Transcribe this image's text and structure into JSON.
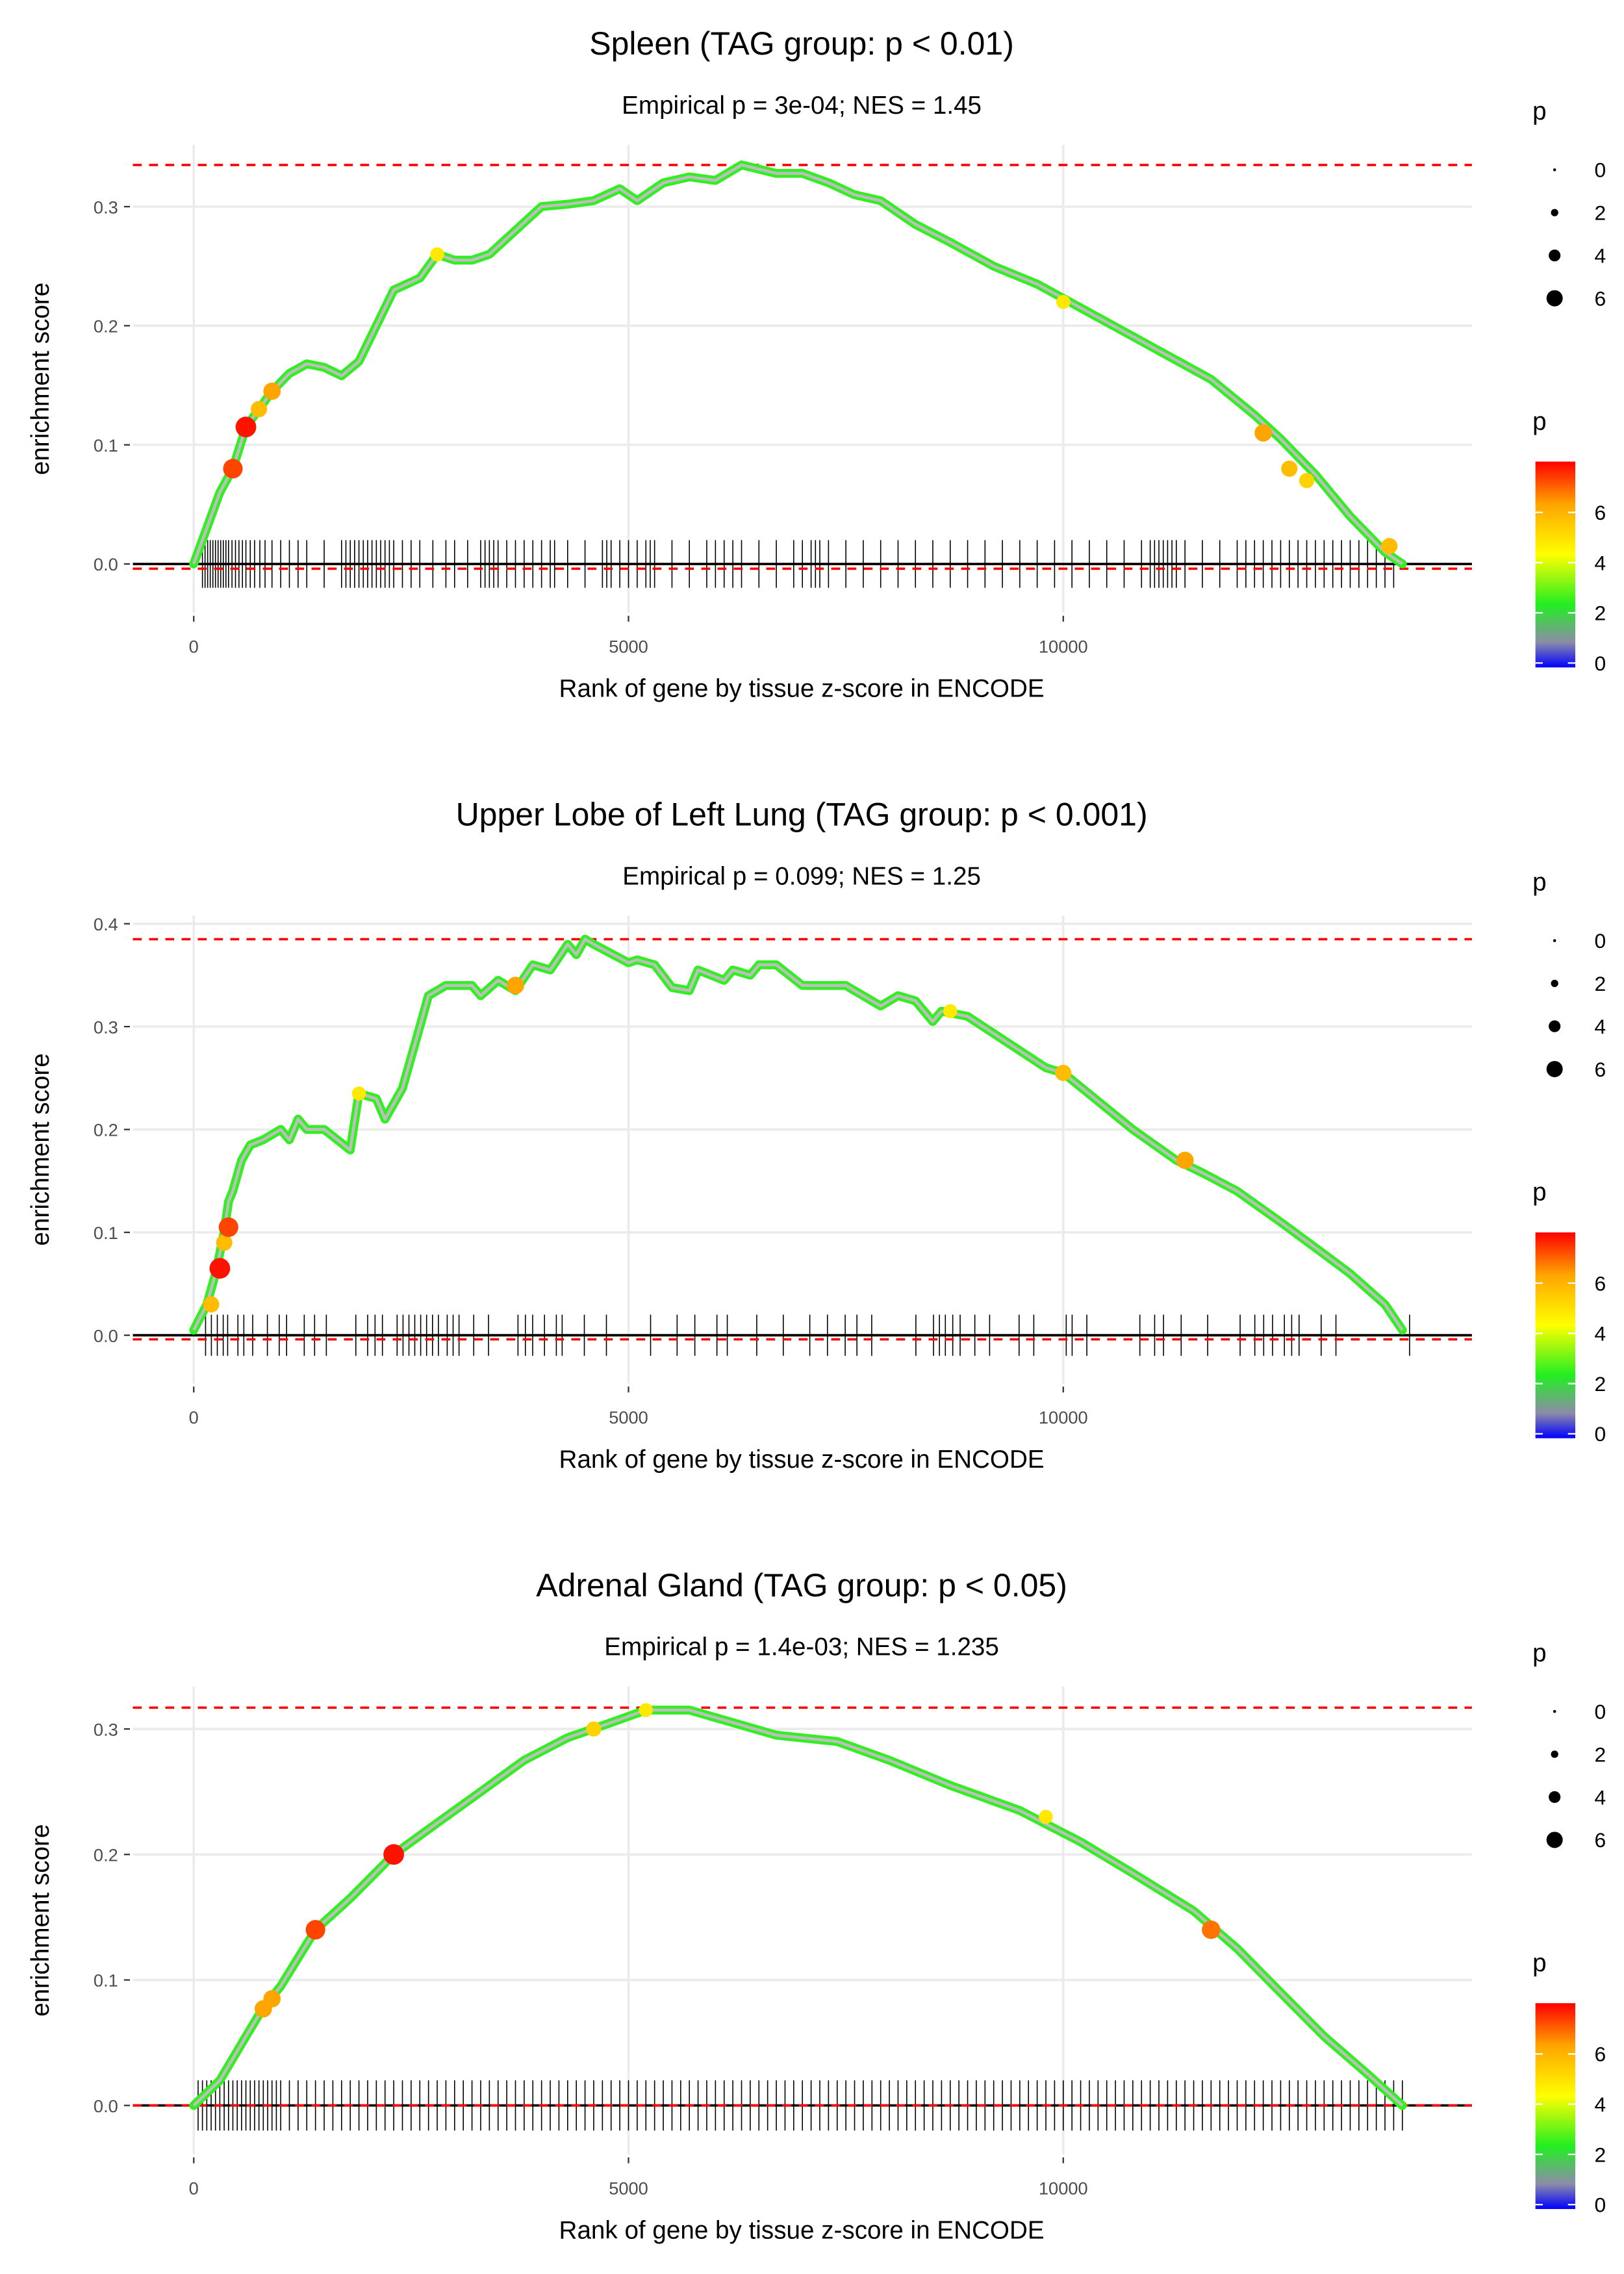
{
  "colors": {
    "dashed": "#ff0000",
    "line": "#bebebe",
    "grid": "#ebebeb",
    "rug": "#000000"
  },
  "colorscale": [
    [
      0,
      "#0000ff"
    ],
    [
      1,
      "#8c8ca8"
    ],
    [
      2.5,
      "#22ee22"
    ],
    [
      4.5,
      "#ffff00"
    ],
    [
      6.5,
      "#ffa500"
    ],
    [
      8.2,
      "#ff0000"
    ]
  ],
  "chart_data": [
    {
      "type": "line",
      "title": "Spleen (TAG group: p < 0.01)",
      "subtitle": "Empirical p = 3e-04; NES = 1.45",
      "xlabel": "Rank of gene by tissue z-score in ENCODE",
      "ylabel": "enrichment score",
      "xticks": [
        0,
        5000,
        10000
      ],
      "xtick_labels": [
        "0",
        "5000",
        "10000"
      ],
      "yticks": [
        0,
        0.1,
        0.2,
        0.3
      ],
      "ytick_labels": [
        "0.0",
        "0.1",
        "0.2",
        "0.3"
      ],
      "xlim": [
        -700,
        14700
      ],
      "ylim": [
        -0.041,
        0.352
      ],
      "max_es": 0.335,
      "min_es": -0.004,
      "legend": {
        "size_title": "p",
        "size_labels": [
          "0",
          "2",
          "4",
          "6"
        ],
        "color_title": "p",
        "color_labels": [
          "0",
          "2",
          "4",
          "6"
        ]
      },
      "curve": [
        [
          0,
          0
        ],
        [
          100,
          0.02
        ],
        [
          300,
          0.06
        ],
        [
          450,
          0.08
        ],
        [
          600,
          0.115
        ],
        [
          750,
          0.13
        ],
        [
          900,
          0.145
        ],
        [
          1100,
          0.16
        ],
        [
          1300,
          0.168
        ],
        [
          1500,
          0.165
        ],
        [
          1700,
          0.158
        ],
        [
          1900,
          0.17
        ],
        [
          2100,
          0.2
        ],
        [
          2300,
          0.23
        ],
        [
          2600,
          0.24
        ],
        [
          2800,
          0.26
        ],
        [
          3000,
          0.255
        ],
        [
          3200,
          0.255
        ],
        [
          3400,
          0.26
        ],
        [
          3700,
          0.28
        ],
        [
          4000,
          0.3
        ],
        [
          4300,
          0.302
        ],
        [
          4600,
          0.305
        ],
        [
          4900,
          0.315
        ],
        [
          5100,
          0.305
        ],
        [
          5400,
          0.32
        ],
        [
          5700,
          0.325
        ],
        [
          6000,
          0.322
        ],
        [
          6300,
          0.335
        ],
        [
          6700,
          0.328
        ],
        [
          7000,
          0.328
        ],
        [
          7300,
          0.32
        ],
        [
          7600,
          0.31
        ],
        [
          7900,
          0.305
        ],
        [
          8300,
          0.285
        ],
        [
          8700,
          0.27
        ],
        [
          9200,
          0.25
        ],
        [
          9700,
          0.235
        ],
        [
          10200,
          0.215
        ],
        [
          10700,
          0.195
        ],
        [
          11200,
          0.175
        ],
        [
          11700,
          0.155
        ],
        [
          12200,
          0.125
        ],
        [
          12500,
          0.105
        ],
        [
          12900,
          0.075
        ],
        [
          13300,
          0.04
        ],
        [
          13700,
          0.01
        ],
        [
          13900,
          0
        ]
      ],
      "highlights": [
        [
          450,
          0.08,
          7.5
        ],
        [
          600,
          0.115,
          8
        ],
        [
          750,
          0.13,
          6
        ],
        [
          900,
          0.145,
          6.5
        ],
        [
          2800,
          0.26,
          5
        ],
        [
          10000,
          0.22,
          5
        ],
        [
          12300,
          0.11,
          6.5
        ],
        [
          12600,
          0.08,
          6
        ],
        [
          12800,
          0.07,
          5.5
        ],
        [
          13750,
          0.015,
          6
        ]
      ],
      "rug": [
        100,
        130,
        160,
        190,
        220,
        250,
        280,
        310,
        340,
        370,
        400,
        440,
        480,
        520,
        560,
        600,
        650,
        700,
        760,
        820,
        900,
        1000,
        1100,
        1200,
        1300,
        1500,
        1700,
        1750,
        1800,
        1850,
        1900,
        1950,
        2000,
        2050,
        2100,
        2150,
        2200,
        2250,
        2300,
        2400,
        2500,
        2600,
        2750,
        2900,
        3000,
        3150,
        3300,
        3350,
        3400,
        3450,
        3500,
        3600,
        3700,
        3800,
        3900,
        4000,
        4100,
        4150,
        4300,
        4500,
        4700,
        4750,
        4800,
        4900,
        5000,
        5100,
        5200,
        5250,
        5300,
        5500,
        5700,
        5900,
        6000,
        6100,
        6200,
        6300,
        6500,
        6700,
        6900,
        7000,
        7100,
        7150,
        7200,
        7300,
        7500,
        7700,
        7900,
        8100,
        8300,
        8500,
        8700,
        8900,
        9100,
        9300,
        9500,
        9700,
        9900,
        10100,
        10300,
        10500,
        10700,
        10900,
        11000,
        11050,
        11100,
        11150,
        11200,
        11250,
        11300,
        11400,
        11600,
        11800,
        12000,
        12100,
        12200,
        12300,
        12400,
        12500,
        12600,
        12700,
        12800,
        12900,
        13000,
        13100,
        13200,
        13300,
        13400,
        13500,
        13600,
        13700,
        13800
      ]
    },
    {
      "type": "line",
      "title": "Upper Lobe of Left Lung (TAG group: p < 0.001)",
      "subtitle": "Empirical p = 0.099; NES = 1.25",
      "xlabel": "Rank of gene by tissue z-score in ENCODE",
      "ylabel": "enrichment score",
      "xticks": [
        0,
        5000,
        10000
      ],
      "xtick_labels": [
        "0",
        "5000",
        "10000"
      ],
      "yticks": [
        0,
        0.1,
        0.2,
        0.3,
        0.4
      ],
      "ytick_labels": [
        "0.0",
        "0.1",
        "0.2",
        "0.3",
        "0.4"
      ],
      "xlim": [
        -700,
        14700
      ],
      "ylim": [
        -0.047,
        0.408
      ],
      "max_es": 0.385,
      "min_es": -0.004,
      "legend": {
        "size_title": "p",
        "size_labels": [
          "0",
          "2",
          "4",
          "6"
        ],
        "color_title": "p",
        "color_labels": [
          "0",
          "2",
          "4",
          "6"
        ]
      },
      "curve": [
        [
          0,
          0.005
        ],
        [
          150,
          0.03
        ],
        [
          250,
          0.06
        ],
        [
          350,
          0.1
        ],
        [
          400,
          0.13
        ],
        [
          450,
          0.14
        ],
        [
          550,
          0.17
        ],
        [
          650,
          0.185
        ],
        [
          800,
          0.19
        ],
        [
          1000,
          0.2
        ],
        [
          1100,
          0.19
        ],
        [
          1200,
          0.21
        ],
        [
          1300,
          0.2
        ],
        [
          1500,
          0.2
        ],
        [
          1800,
          0.18
        ],
        [
          1900,
          0.235
        ],
        [
          2100,
          0.23
        ],
        [
          2200,
          0.21
        ],
        [
          2400,
          0.24
        ],
        [
          2500,
          0.27
        ],
        [
          2600,
          0.3
        ],
        [
          2700,
          0.33
        ],
        [
          2900,
          0.34
        ],
        [
          3200,
          0.34
        ],
        [
          3300,
          0.33
        ],
        [
          3500,
          0.345
        ],
        [
          3700,
          0.335
        ],
        [
          3900,
          0.36
        ],
        [
          4100,
          0.355
        ],
        [
          4300,
          0.38
        ],
        [
          4400,
          0.37
        ],
        [
          4500,
          0.385
        ],
        [
          4600,
          0.38
        ],
        [
          5000,
          0.362
        ],
        [
          5100,
          0.365
        ],
        [
          5300,
          0.36
        ],
        [
          5500,
          0.338
        ],
        [
          5700,
          0.335
        ],
        [
          5800,
          0.355
        ],
        [
          6100,
          0.345
        ],
        [
          6200,
          0.355
        ],
        [
          6400,
          0.35
        ],
        [
          6500,
          0.36
        ],
        [
          6700,
          0.36
        ],
        [
          7000,
          0.34
        ],
        [
          7300,
          0.34
        ],
        [
          7500,
          0.34
        ],
        [
          7900,
          0.32
        ],
        [
          8100,
          0.33
        ],
        [
          8300,
          0.325
        ],
        [
          8500,
          0.305
        ],
        [
          8600,
          0.315
        ],
        [
          8900,
          0.31
        ],
        [
          9800,
          0.26
        ],
        [
          10000,
          0.255
        ],
        [
          10800,
          0.2
        ],
        [
          11300,
          0.17
        ],
        [
          11600,
          0.158
        ],
        [
          12000,
          0.14
        ],
        [
          12500,
          0.11
        ],
        [
          12900,
          0.085
        ],
        [
          13300,
          0.06
        ],
        [
          13700,
          0.03
        ],
        [
          13900,
          0.005
        ]
      ],
      "highlights": [
        [
          200,
          0.03,
          6
        ],
        [
          300,
          0.065,
          8
        ],
        [
          350,
          0.09,
          6
        ],
        [
          400,
          0.105,
          7.5
        ],
        [
          3700,
          0.34,
          6.5
        ],
        [
          1900,
          0.235,
          5
        ],
        [
          8700,
          0.315,
          5
        ],
        [
          10000,
          0.255,
          6
        ],
        [
          11400,
          0.17,
          6.5
        ]
      ],
      "rug": [
        136,
        203,
        271,
        339,
        390,
        508,
        576,
        678,
        847,
        983,
        1068,
        1271,
        1390,
        1525,
        1864,
        2000,
        2085,
        2170,
        2339,
        2407,
        2475,
        2542,
        2610,
        2678,
        2746,
        2814,
        2915,
        2983,
        3051,
        3220,
        3390,
        3729,
        3814,
        3898,
        4034,
        4170,
        4237,
        4492,
        4746,
        5254,
        5559,
        5763,
        6017,
        6136,
        6475,
        6780,
        7085,
        7288,
        7492,
        7627,
        7797,
        8305,
        8508,
        8576,
        8644,
        8729,
        8814,
        8983,
        9153,
        9492,
        9661,
        10034,
        10102,
        10271,
        10881,
        11051,
        11153,
        11356,
        11661,
        12034,
        12203,
        12305,
        12407,
        12543,
        12627,
        12712,
        12966,
        13136,
        13983
      ]
    },
    {
      "type": "line",
      "title": "Adrenal Gland (TAG group: p < 0.05)",
      "subtitle": "Empirical p = 1.4e-03; NES = 1.235",
      "xlabel": "Rank of gene by tissue z-score in ENCODE",
      "ylabel": "enrichment score",
      "xticks": [
        0,
        5000,
        10000
      ],
      "xtick_labels": [
        "0",
        "5000",
        "10000"
      ],
      "yticks": [
        0,
        0.1,
        0.2,
        0.3
      ],
      "ytick_labels": [
        "0.0",
        "0.1",
        "0.2",
        "0.3"
      ],
      "xlim": [
        -700,
        14700
      ],
      "ylim": [
        -0.039,
        0.334
      ],
      "max_es": 0.317,
      "min_es": 0,
      "legend": {
        "size_title": "p",
        "size_labels": [
          "0",
          "2",
          "4",
          "6"
        ],
        "color_title": "p",
        "color_labels": [
          "0",
          "2",
          "4",
          "6"
        ]
      },
      "curve": [
        [
          0,
          0
        ],
        [
          300,
          0.02
        ],
        [
          600,
          0.055
        ],
        [
          800,
          0.078
        ],
        [
          1000,
          0.095
        ],
        [
          1400,
          0.14
        ],
        [
          1800,
          0.165
        ],
        [
          2300,
          0.2
        ],
        [
          2800,
          0.225
        ],
        [
          3300,
          0.25
        ],
        [
          3800,
          0.275
        ],
        [
          4300,
          0.293
        ],
        [
          4800,
          0.305
        ],
        [
          5200,
          0.315
        ],
        [
          5700,
          0.315
        ],
        [
          6200,
          0.305
        ],
        [
          6700,
          0.295
        ],
        [
          7400,
          0.29
        ],
        [
          8000,
          0.275
        ],
        [
          8700,
          0.255
        ],
        [
          9500,
          0.235
        ],
        [
          10200,
          0.21
        ],
        [
          10800,
          0.185
        ],
        [
          11500,
          0.155
        ],
        [
          12000,
          0.125
        ],
        [
          12500,
          0.09
        ],
        [
          13000,
          0.055
        ],
        [
          13500,
          0.025
        ],
        [
          13900,
          0
        ]
      ],
      "highlights": [
        [
          800,
          0.077,
          6.5
        ],
        [
          900,
          0.085,
          6.5
        ],
        [
          1400,
          0.14,
          7.5
        ],
        [
          2300,
          0.2,
          8
        ],
        [
          4600,
          0.3,
          5.5
        ],
        [
          5200,
          0.315,
          5
        ],
        [
          9800,
          0.23,
          5
        ],
        [
          11700,
          0.14,
          7
        ]
      ],
      "rug": [
        50,
        100,
        150,
        200,
        250,
        300,
        350,
        400,
        450,
        500,
        550,
        600,
        650,
        700,
        750,
        800,
        850,
        900,
        950,
        1000,
        1100,
        1200,
        1300,
        1400,
        1500,
        1600,
        1700,
        1800,
        1900,
        2000,
        2100,
        2200,
        2300,
        2400,
        2500,
        2600,
        2700,
        2800,
        2900,
        3000,
        3100,
        3200,
        3300,
        3400,
        3500,
        3600,
        3700,
        3800,
        3900,
        4000,
        4100,
        4200,
        4300,
        4400,
        4500,
        4600,
        4700,
        4800,
        4900,
        5000,
        5100,
        5200,
        5300,
        5400,
        5500,
        5600,
        5700,
        5800,
        5900,
        6000,
        6100,
        6200,
        6300,
        6400,
        6500,
        6600,
        6700,
        6800,
        6900,
        7000,
        7100,
        7200,
        7300,
        7400,
        7500,
        7600,
        7700,
        7800,
        7900,
        8000,
        8100,
        8200,
        8300,
        8400,
        8500,
        8600,
        8700,
        8800,
        8900,
        9000,
        9100,
        9200,
        9300,
        9400,
        9500,
        9600,
        9700,
        9800,
        9900,
        10000,
        10100,
        10200,
        10300,
        10400,
        10500,
        10600,
        10700,
        10800,
        10900,
        11000,
        11100,
        11200,
        11300,
        11400,
        11500,
        11600,
        11700,
        11800,
        11900,
        12000,
        12100,
        12200,
        12300,
        12400,
        12500,
        12600,
        12700,
        12800,
        12900,
        13000,
        13100,
        13200,
        13300,
        13400,
        13500,
        13600,
        13700,
        13800,
        13900
      ]
    }
  ]
}
